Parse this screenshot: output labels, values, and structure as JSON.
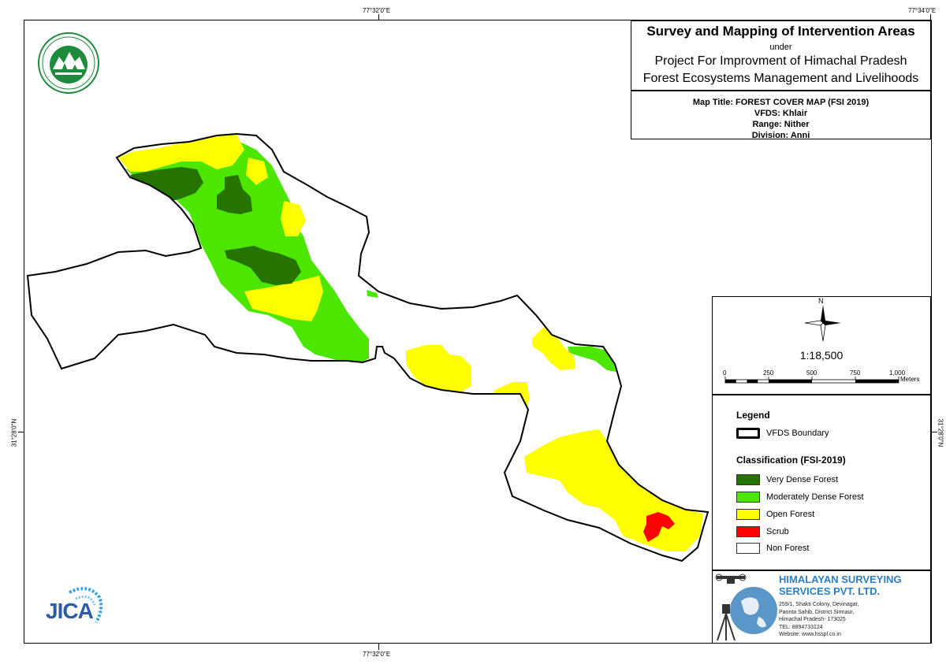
{
  "title_box": {
    "title": "Survey and Mapping of Intervention Areas",
    "under": "under",
    "project_line1": "Project For Improvment of Himachal Pradesh",
    "project_line2": "Forest Ecosystems Management and Livelihoods"
  },
  "meta": {
    "map_title": "Map Title: FOREST COVER MAP (FSI 2019)",
    "vfds": "VFDS: Khlair",
    "range": "Range: Nither",
    "division": "Division: Anni"
  },
  "coordinates": {
    "top_center": "77°32'0\"E",
    "top_right": "77°34'0\"E",
    "bottom_center": "77°32'0\"E",
    "left": "31°28'0\"N",
    "right": "31°28'0\"N"
  },
  "north_label": "N",
  "scale": {
    "ratio": "1:18,500",
    "ticks": [
      "0",
      "250",
      "500",
      "750",
      "1,000"
    ],
    "unit": "Meters"
  },
  "legend": {
    "title": "Legend",
    "boundary_label": "VFDS Boundary",
    "classification_title": "Classification (FSI-2019)",
    "classes": [
      {
        "label": "Very Dense Forest",
        "color": "#267300"
      },
      {
        "label": "Moderately Dense Forest",
        "color": "#4ce600"
      },
      {
        "label": "Open Forest",
        "color": "#ffff00"
      },
      {
        "label": "Scrub",
        "color": "#ff0000"
      },
      {
        "label": "Non Forest",
        "color": "#ffffff"
      }
    ]
  },
  "company": {
    "name_line1": "HIMALAYAN SURVEYING",
    "name_line2": "SERVICES PVT. LTD.",
    "address": [
      "259/1, Shakti Colony, Devinagar,",
      "Paonta Sahib, District Sirmaur,",
      "Himachal Pradesh- 173025",
      "TEL: 8894733124",
      "Website: www.hsspl.co.in"
    ]
  },
  "jica_label": "JICA"
}
